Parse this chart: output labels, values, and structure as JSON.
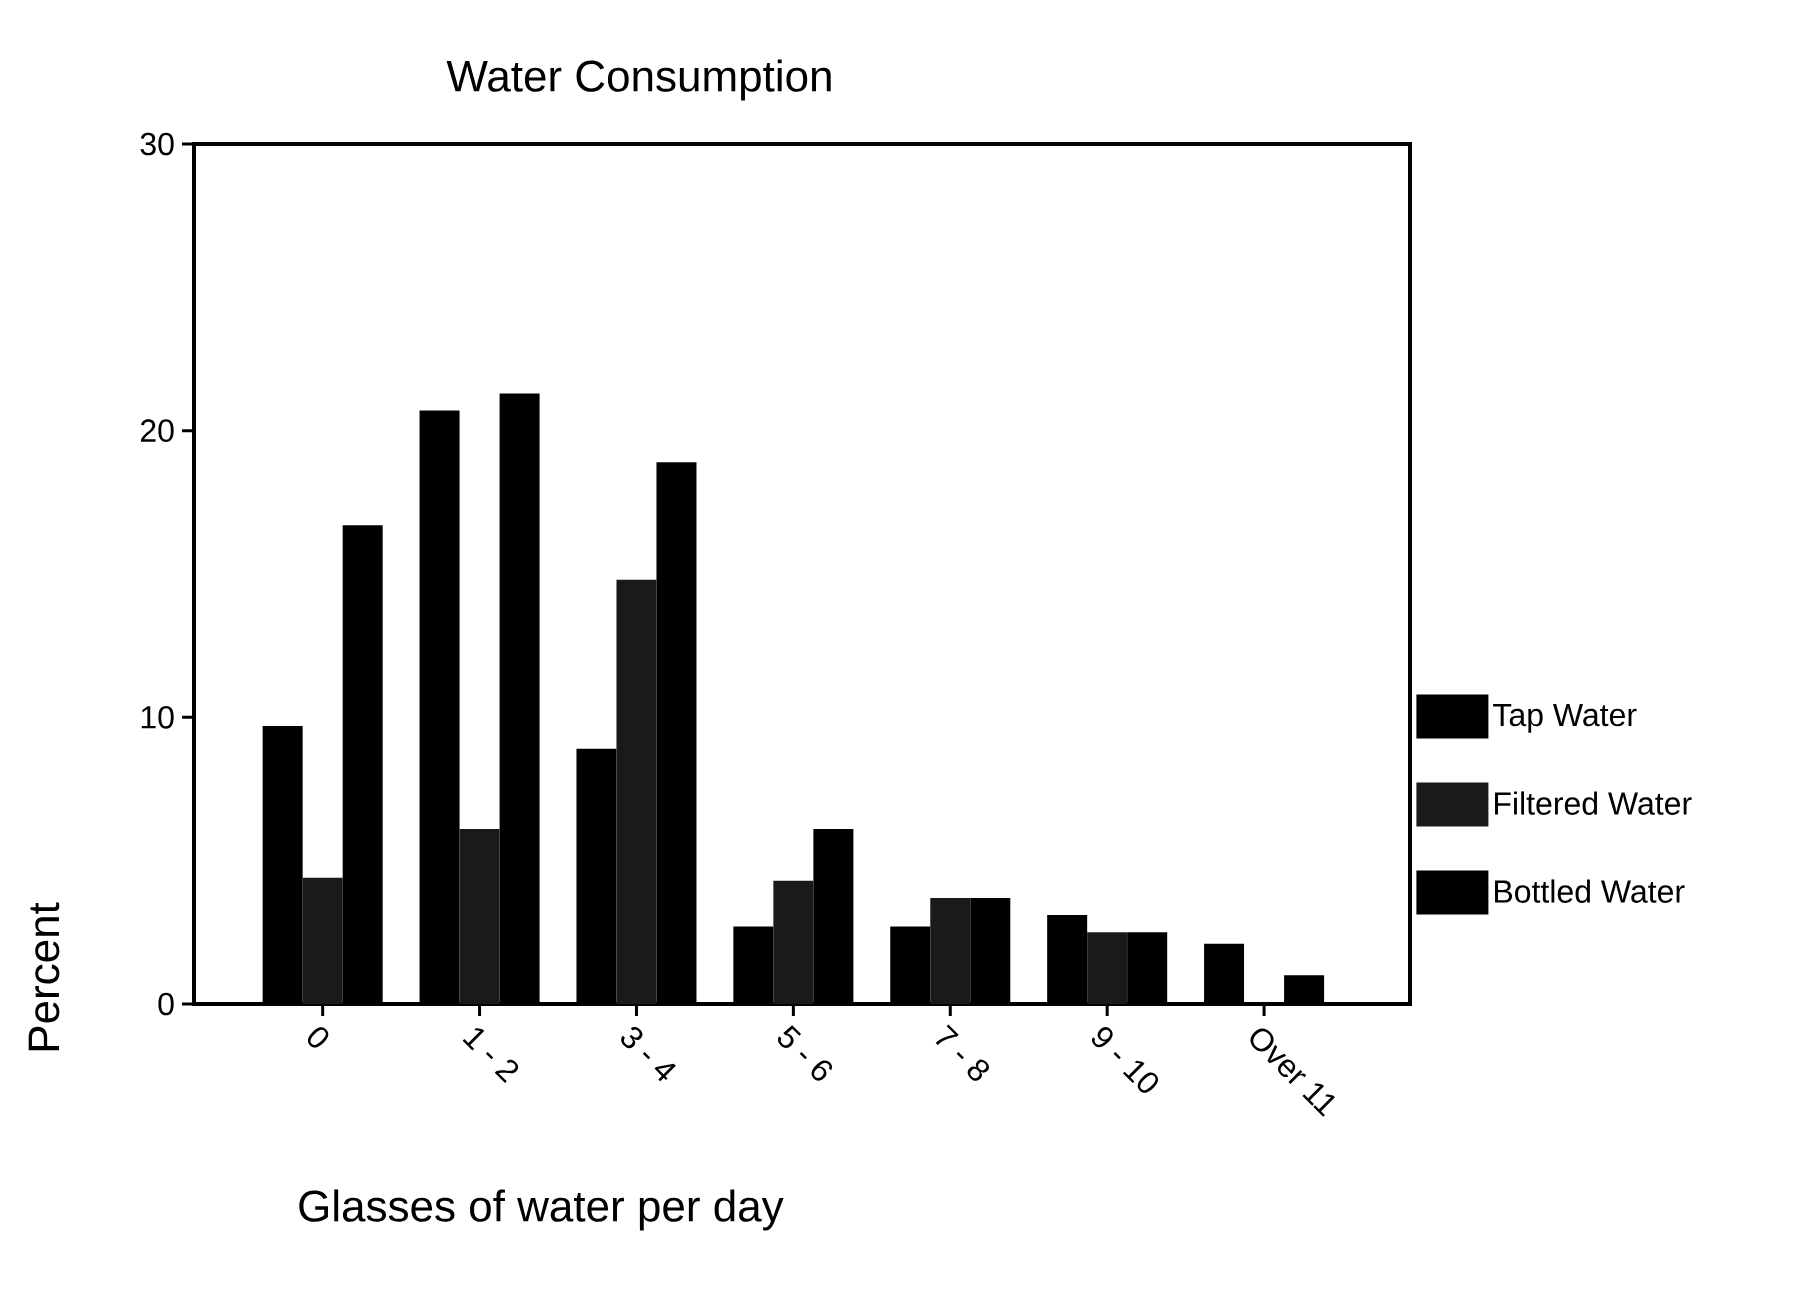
{
  "chart_data": {
    "type": "bar",
    "title": "Water Consumption",
    "xlabel": "Glasses of water per day",
    "ylabel": "Percent",
    "categories": [
      "0",
      "1 - 2",
      "3 - 4",
      "5 - 6",
      "7 - 8",
      "9 - 10",
      "Over 11"
    ],
    "series": [
      {
        "name": "Tap Water",
        "color": "#000000",
        "values": [
          9.7,
          20.7,
          8.9,
          2.7,
          2.7,
          3.1,
          2.1
        ]
      },
      {
        "name": "Filtered Water",
        "color": "#1a1a1a",
        "values": [
          4.4,
          6.1,
          14.8,
          4.3,
          3.7,
          2.5,
          null
        ]
      },
      {
        "name": "Bottled Water",
        "color": "#000000",
        "values": [
          16.7,
          21.3,
          18.9,
          6.1,
          3.7,
          2.5,
          1.0
        ]
      }
    ],
    "ylim": [
      0,
      30
    ],
    "yticks": [
      0,
      10,
      20,
      30
    ],
    "legend": "right"
  }
}
